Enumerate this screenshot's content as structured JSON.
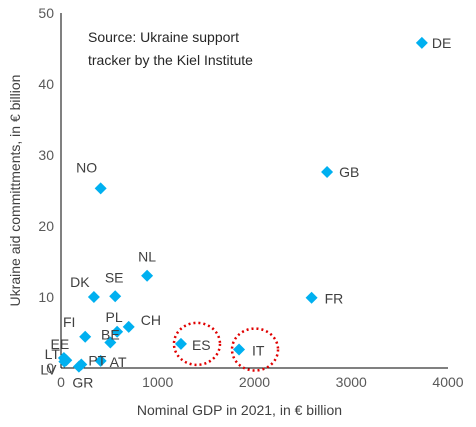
{
  "chart_data": {
    "type": "scatter",
    "title": "",
    "annotation_lines": [
      "Source: Ukraine support",
      "tracker by the Kiel Institute"
    ],
    "xlabel": "Nominal GDP in 2021, in € billion",
    "ylabel": "Ukraine aid committments, in € billion",
    "xlim": [
      0,
      4000
    ],
    "ylim": [
      0,
      50
    ],
    "xticks": [
      0,
      1000,
      2000,
      3000,
      4000
    ],
    "yticks": [
      0,
      10,
      20,
      30,
      40,
      50
    ],
    "grid": false,
    "marker": "diamond",
    "marker_color": "#00B0F0",
    "highlight_color": "#E00000",
    "highlighted": [
      "ES",
      "IT"
    ],
    "points": [
      {
        "label": "DE",
        "x": 3730,
        "y": 45.8
      },
      {
        "label": "GB",
        "x": 2750,
        "y": 27.6
      },
      {
        "label": "NO",
        "x": 410,
        "y": 25.3
      },
      {
        "label": "NL",
        "x": 890,
        "y": 13.0
      },
      {
        "label": "FR",
        "x": 2590,
        "y": 9.9
      },
      {
        "label": "DK",
        "x": 340,
        "y": 10.0
      },
      {
        "label": "SE",
        "x": 560,
        "y": 10.1
      },
      {
        "label": "PL",
        "x": 580,
        "y": 5.1
      },
      {
        "label": "CH",
        "x": 700,
        "y": 5.8
      },
      {
        "label": "FI",
        "x": 250,
        "y": 4.4
      },
      {
        "label": "BE",
        "x": 510,
        "y": 3.6
      },
      {
        "label": "ES",
        "x": 1240,
        "y": 3.4
      },
      {
        "label": "IT",
        "x": 1840,
        "y": 2.6
      },
      {
        "label": "EE",
        "x": 30,
        "y": 1.4
      },
      {
        "label": "LT",
        "x": 55,
        "y": 1.1
      },
      {
        "label": "LV",
        "x": 35,
        "y": 0.9
      },
      {
        "label": "PT",
        "x": 210,
        "y": 0.5
      },
      {
        "label": "GR",
        "x": 185,
        "y": 0.2
      },
      {
        "label": "AT",
        "x": 410,
        "y": 1.0
      }
    ]
  }
}
